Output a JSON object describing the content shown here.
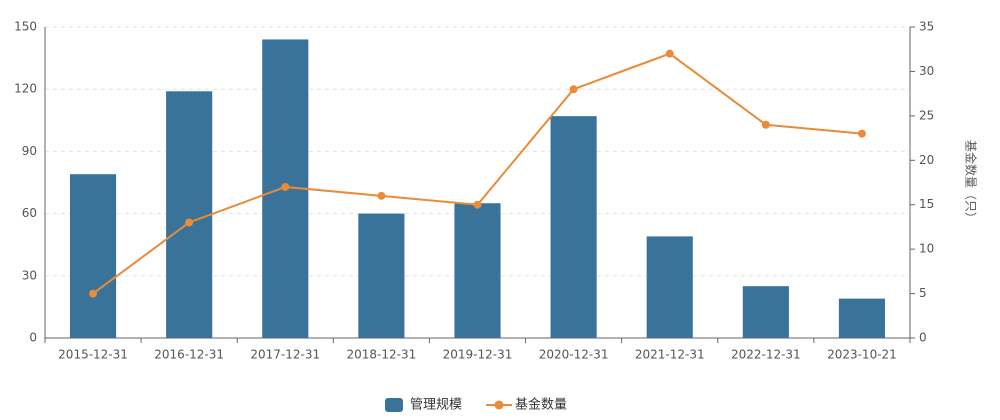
{
  "chart_data": {
    "type": "combo",
    "categories": [
      "2015-12-31",
      "2016-12-31",
      "2017-12-31",
      "2018-12-31",
      "2019-12-31",
      "2020-12-31",
      "2021-12-31",
      "2022-12-31",
      "2023-10-21"
    ],
    "series": [
      {
        "name": "管理规模",
        "type": "bar",
        "color": "#3a7399",
        "values": [
          79,
          119,
          144,
          60,
          65,
          107,
          49,
          25,
          19
        ]
      },
      {
        "name": "基金数量",
        "type": "line",
        "color": "#e98b37",
        "axis": "y2",
        "values": [
          5,
          13,
          17,
          16,
          15,
          28,
          32,
          24,
          23
        ]
      }
    ],
    "ylim": [
      0,
      150
    ],
    "yticks": [
      0,
      30,
      60,
      90,
      120,
      150
    ],
    "y2lim": [
      0,
      35
    ],
    "y2ticks": [
      0,
      5,
      10,
      15,
      20,
      25,
      30,
      35
    ],
    "y2label": "基金数量（只）",
    "grid": true,
    "legend": "bottom"
  }
}
